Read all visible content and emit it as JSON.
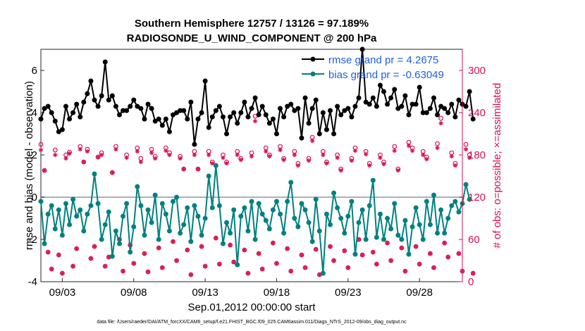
{
  "chart_data": {
    "type": "line",
    "title": "Southern Hemisphere 12757 / 13126 = 97.189%",
    "subtitle": "RADIOSONDE_U_WIND_COMPONENT @ 200 hPa",
    "xlabel": "Sep.01,2012 00:00:00 start",
    "ylabel_left": "rmse and bias (model - observation)",
    "ylabel_right": "# of obs: o=possible; ×=assimilated",
    "x_ticks": [
      "09/03",
      "09/08",
      "09/13",
      "09/18",
      "09/23",
      "09/28"
    ],
    "x_tick_days": [
      3,
      8,
      13,
      18,
      23,
      28
    ],
    "xlim": [
      1.5,
      31.0
    ],
    "ylim_left": [
      -4,
      7
    ],
    "ylim_right": [
      0,
      330
    ],
    "left_ticks": [
      -4,
      -2,
      0,
      2,
      4,
      6
    ],
    "right_ticks": [
      0,
      60,
      120,
      180,
      240,
      300
    ],
    "footnote": "data file: /Users/raeder/DAI/ATM_forcXX/CAM6_setup/f.e21.FHIST_BGC.f09_025.CAM6assim.011/Diags_NTrS_2012-09/obs_diag_output.nc",
    "colors": {
      "rmse": "#000000",
      "bias": "#008080",
      "obs": "#d6104f",
      "zero_line": "#b0b0b0"
    },
    "series": [
      {
        "name": "rmse grand pr = 4.2675",
        "axis": "left",
        "values": [
          3.7,
          4.2,
          4.3,
          4.0,
          3.6,
          3.1,
          3.2,
          4.3,
          3.7,
          4.0,
          4.4,
          3.8,
          4.5,
          4.9,
          5.5,
          4.6,
          4.3,
          4.8,
          6.4,
          4.6,
          4.8,
          4.3,
          3.9,
          4.1,
          4.1,
          4.3,
          4.6,
          4.3,
          4.2,
          3.7,
          4.4,
          4.2,
          3.6,
          3.7,
          3.4,
          3.7,
          3.1,
          3.9,
          4.0,
          4.1,
          4.1,
          3.7,
          4.5,
          2.5,
          3.7,
          4.0,
          5.5,
          3.3,
          3.8,
          4.1,
          4.3,
          3.8,
          3.0,
          3.8,
          4.0,
          3.5,
          4.0,
          4.5,
          3.8,
          4.2,
          4.7,
          3.9,
          4.3,
          3.9,
          3.5,
          3.7,
          3.0,
          4.2,
          3.8,
          4.3,
          4.4,
          4.1,
          4.2,
          2.8,
          4.7,
          3.5,
          4.2,
          4.6,
          3.0,
          4.0,
          3.2,
          4.1,
          3.0,
          4.3,
          3.9,
          4.1,
          4.2,
          3.8,
          4.3,
          4.7,
          7.0,
          4.5,
          4.4,
          4.7,
          4.3,
          5.3,
          5.0,
          4.4,
          4.7,
          5.1,
          4.2,
          4.3,
          4.8,
          3.9,
          4.4,
          4.4,
          5.2,
          4.0,
          4.0,
          4.2,
          4.7,
          3.9,
          4.3,
          4.2,
          4.0,
          4.4,
          3.8,
          4.6,
          4.4,
          4.3,
          5.0,
          3.7
        ],
        "start_day": 1.5,
        "step_days": 0.25
      },
      {
        "name": "bias grand pr = -0.63049",
        "axis": "left",
        "values": [
          -0.2,
          -2.2,
          -0.8,
          -0.4,
          -1.5,
          -0.6,
          -1.8,
          -0.3,
          -1.3,
          -0.1,
          -0.9,
          -0.6,
          -1.6,
          -0.8,
          -0.4,
          1.1,
          -0.3,
          -2.0,
          -1.3,
          -0.7,
          -2.8,
          -1.6,
          -2.2,
          -0.9,
          -0.3,
          -2.6,
          -1.4,
          0.5,
          -0.4,
          -1.8,
          -0.6,
          -1.2,
          0.1,
          -2.0,
          -0.3,
          -0.8,
          -1.6,
          -0.2,
          0.0,
          -1.7,
          -1.3,
          -0.5,
          -2.1,
          -0.4,
          -0.9,
          -1.8,
          -1.0,
          1.0,
          -0.5,
          1.5,
          -0.4,
          -2.2,
          -1.2,
          -1.7,
          -0.6,
          -3.2,
          -0.9,
          -0.5,
          -1.6,
          -0.2,
          -2.0,
          -0.3,
          -0.8,
          -1.1,
          -1.5,
          -0.6,
          -0.2,
          -0.8,
          -1.7,
          -0.2,
          0.7,
          -1.0,
          -1.4,
          -0.3,
          -0.6,
          -1.2,
          -2.1,
          -0.1,
          -1.6,
          -3.6,
          -0.8,
          -1.3,
          0.2,
          -0.5,
          -1.0,
          -1.7,
          -0.9,
          -0.2,
          -2.7,
          -1.2,
          -0.6,
          -2.0,
          -0.4,
          0.8,
          -1.9,
          -0.8,
          -2.0,
          -1.0,
          -1.5,
          -0.3,
          -1.8,
          -2.0,
          -1.1,
          -2.7,
          -1.4,
          -0.5,
          -1.3,
          -2.0,
          -0.2,
          -1.3,
          0.1,
          -1.7,
          -0.6,
          -1.7,
          -1.0,
          -0.4,
          -0.2,
          -0.7,
          -0.3,
          0.6,
          -0.1
        ],
        "start_day": 1.5,
        "step_days": 0.25
      },
      {
        "name": "obs possible",
        "axis": "right",
        "marker": "o",
        "values": [
          195,
          158,
          42,
          18,
          187,
          38,
          12,
          180,
          184,
          22,
          47,
          192,
          170,
          188,
          33,
          50,
          177,
          183,
          22,
          35,
          155,
          192,
          60,
          15,
          180,
          52,
          26,
          190,
          175,
          40,
          14,
          188,
          178,
          48,
          20,
          190,
          183,
          57,
          30,
          178,
          160,
          45,
          10,
          185,
          160,
          50,
          22,
          185,
          170,
          62,
          25,
          180,
          170,
          52,
          28,
          185,
          175,
          45,
          12,
          183,
          235,
          40,
          18,
          190,
          180,
          55,
          26,
          192,
          175,
          47,
          15,
          185,
          168,
          38,
          20,
          175,
          205,
          46,
          10,
          185,
          170,
          50,
          30,
          180,
          160,
          44,
          20,
          175,
          190,
          60,
          38,
          185,
          168,
          42,
          25,
          180,
          170,
          55,
          30,
          192,
          160,
          48,
          15,
          198,
          190,
          50,
          25,
          185,
          177,
          40,
          20,
          196,
          232,
          55,
          35,
          183,
          168,
          40,
          15,
          195,
          180,
          12
        ],
        "start_day": 1.5,
        "step_days": 0.25
      },
      {
        "name": "obs assimilated",
        "axis": "right",
        "marker": "x",
        "values": [
          187,
          158,
          42,
          18,
          180,
          38,
          12,
          175,
          182,
          22,
          47,
          188,
          170,
          185,
          33,
          50,
          177,
          180,
          22,
          35,
          155,
          188,
          60,
          15,
          176,
          52,
          26,
          185,
          170,
          40,
          14,
          183,
          175,
          48,
          20,
          186,
          180,
          57,
          30,
          175,
          160,
          45,
          10,
          180,
          160,
          50,
          22,
          180,
          168,
          62,
          25,
          176,
          168,
          52,
          28,
          180,
          173,
          45,
          12,
          178,
          228,
          40,
          18,
          185,
          178,
          55,
          26,
          187,
          173,
          47,
          15,
          180,
          165,
          38,
          20,
          172,
          200,
          46,
          10,
          180,
          168,
          50,
          30,
          176,
          158,
          44,
          20,
          172,
          186,
          60,
          38,
          181,
          165,
          42,
          25,
          176,
          167,
          55,
          30,
          186,
          158,
          48,
          15,
          193,
          186,
          50,
          25,
          180,
          174,
          40,
          20,
          190,
          225,
          55,
          35,
          178,
          165,
          40,
          15,
          188,
          176,
          12
        ],
        "start_day": 1.5,
        "step_days": 0.25
      }
    ]
  }
}
